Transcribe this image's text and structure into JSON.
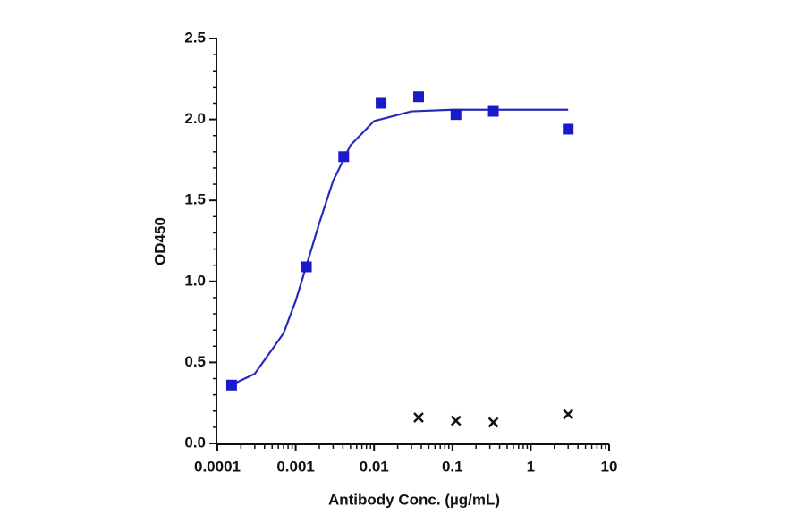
{
  "chart_data": {
    "type": "scatter",
    "xlabel": "Antibody Conc. (µg/mL)",
    "ylabel": "OD450",
    "xscale": "log",
    "xlim": [
      0.0001,
      10
    ],
    "ylim": [
      0,
      2.5
    ],
    "xticks": [
      0.0001,
      0.001,
      0.01,
      0.1,
      1,
      10
    ],
    "xminorticks": [
      0.0002,
      0.0003,
      0.0004,
      0.0005,
      0.0006,
      0.0007,
      0.0008,
      0.0009,
      0.002,
      0.003,
      0.004,
      0.005,
      0.006,
      0.007,
      0.008,
      0.009,
      0.02,
      0.03,
      0.04,
      0.05,
      0.06,
      0.07,
      0.08,
      0.09,
      0.2,
      0.3,
      0.4,
      0.5,
      0.6,
      0.7,
      0.8,
      0.9,
      2,
      3,
      4,
      5,
      6,
      7,
      8,
      9
    ],
    "yticks": [
      {
        "value": 0,
        "label": "0.0"
      },
      0.5,
      {
        "value": 1,
        "label": "1.0"
      },
      1.5,
      {
        "value": 2,
        "label": "2.0"
      },
      2.5
    ],
    "yminorticks": [
      0.1,
      0.2,
      0.3,
      0.4,
      0.6,
      0.7,
      0.8,
      0.9,
      1.1,
      1.2,
      1.3,
      1.4,
      1.6,
      1.7,
      1.8,
      1.9,
      2.1,
      2.2,
      2.3,
      2.4
    ],
    "series": [
      {
        "marker": "square",
        "color": "#1a1acc",
        "x": [
          0.000152,
          0.00137,
          0.0041,
          0.0123,
          0.037,
          0.111,
          0.333,
          3
        ],
        "values": [
          0.36,
          1.09,
          1.77,
          2.1,
          2.14,
          2.03,
          2.05,
          1.94
        ]
      },
      {
        "marker": "x",
        "color": "#111111",
        "x": [
          0.037,
          0.111,
          0.333,
          3
        ],
        "values": [
          0.16,
          0.14,
          0.13,
          0.18
        ]
      },
      {
        "marker": "line",
        "color": "#2a2ab8",
        "x": [
          0.00015,
          0.0003,
          0.0005,
          0.0007,
          0.001,
          0.0015,
          0.002,
          0.003,
          0.005,
          0.01,
          0.03,
          0.1,
          1,
          3
        ],
        "values": [
          0.36,
          0.43,
          0.58,
          0.68,
          0.88,
          1.16,
          1.36,
          1.62,
          1.84,
          1.99,
          2.05,
          2.06,
          2.06,
          2.06
        ]
      }
    ]
  }
}
